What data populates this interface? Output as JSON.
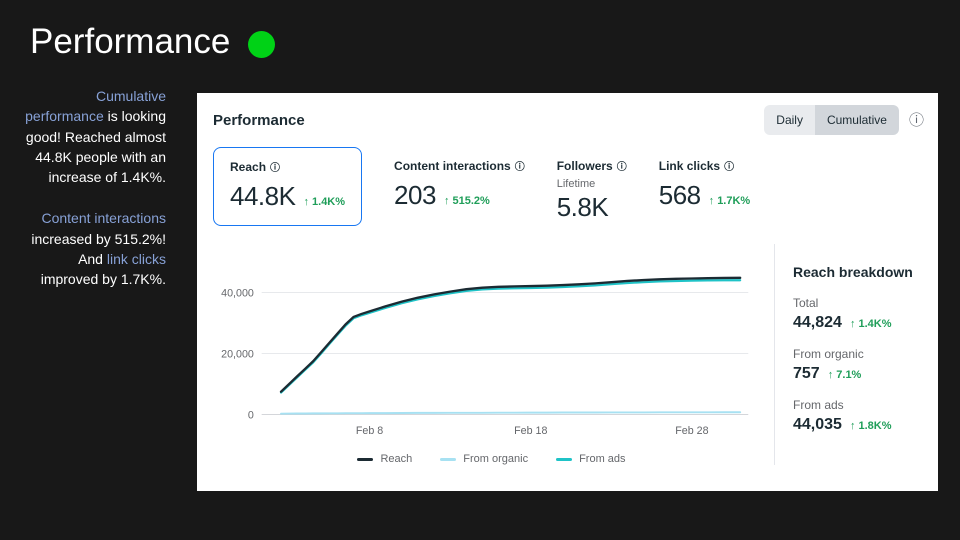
{
  "colors": {
    "bg": "#181818",
    "dot_green": "#00d216",
    "link_blue": "#87a1d6",
    "trend_green": "#1f9e59",
    "card_blue": "#1877f2"
  },
  "icons": {
    "trend_up": "↑",
    "info": "ⓘ"
  },
  "slide": {
    "title": "Performance",
    "note1": {
      "link": "Cumulative performance",
      "text": " is looking good! Reached almost 44.8K people with an increase of 1.4K%."
    },
    "note2": {
      "link1": "Content interactions",
      "text1": " increased by 515.2%!",
      "text2": "And ",
      "link2": "link clicks",
      "text3": " improved by 1.7K%."
    }
  },
  "panel": {
    "title": "Performance",
    "toggle": {
      "daily": "Daily",
      "cumulative": "Cumulative"
    },
    "metrics": [
      {
        "label": "Reach",
        "value": "44.8K",
        "trend": "1.4K%",
        "selected": true
      },
      {
        "label": "Content interactions",
        "value": "203",
        "trend": "515.2%"
      },
      {
        "label": "Followers",
        "sub": "Lifetime",
        "value": "5.8K"
      },
      {
        "label": "Link clicks",
        "value": "568",
        "trend": "1.7K%"
      }
    ],
    "breakdown": {
      "title": "Reach breakdown",
      "rows": [
        {
          "label": "Total",
          "value": "44,824",
          "trend": "1.4K%"
        },
        {
          "label": "From organic",
          "value": "757",
          "trend": "7.1%"
        },
        {
          "label": "From ads",
          "value": "44,035",
          "trend": "1.8K%"
        }
      ]
    }
  },
  "chart_data": {
    "type": "line",
    "x_domain": [
      1.3,
      31.5
    ],
    "ylim": [
      0,
      52000
    ],
    "yticks": [
      0,
      20000,
      40000
    ],
    "x_ticks": [
      {
        "day": 8,
        "label": "Feb 8"
      },
      {
        "day": 18,
        "label": "Feb 18"
      },
      {
        "day": 28,
        "label": "Feb 28"
      }
    ],
    "x": [
      2.5,
      3,
      3.5,
      4,
      4.5,
      5,
      5.5,
      6,
      6.5,
      7,
      7.5,
      8,
      9,
      10,
      11,
      12,
      13,
      14,
      15,
      16,
      17,
      18,
      19,
      20,
      21,
      22,
      23,
      24,
      25,
      26,
      27,
      28,
      29,
      30,
      31
    ],
    "series": [
      {
        "name": "Reach",
        "color": "#1c2b33",
        "width": 2.4,
        "values": [
          7500,
          10000,
          12500,
          15000,
          17500,
          20500,
          23500,
          26500,
          29500,
          32000,
          33000,
          33800,
          35500,
          37000,
          38300,
          39400,
          40300,
          41100,
          41600,
          41900,
          42000,
          42100,
          42250,
          42450,
          42700,
          43000,
          43400,
          43800,
          44100,
          44350,
          44500,
          44600,
          44700,
          44780,
          44824
        ]
      },
      {
        "name": "From organic",
        "color": "#a7e1f2",
        "width": 2,
        "values": [
          300,
          320,
          340,
          360,
          375,
          390,
          405,
          420,
          435,
          450,
          460,
          470,
          490,
          510,
          528,
          545,
          560,
          575,
          590,
          605,
          618,
          630,
          642,
          654,
          665,
          676,
          687,
          698,
          708,
          718,
          727,
          735,
          743,
          750,
          757
        ]
      },
      {
        "name": "From ads",
        "color": "#1fc3c7",
        "width": 2.2,
        "values": [
          7200,
          9680,
          12160,
          14640,
          17125,
          20110,
          23095,
          26080,
          29065,
          31550,
          32540,
          33330,
          35010,
          36490,
          37772,
          38855,
          39740,
          40525,
          41010,
          41295,
          41382,
          41470,
          41608,
          41796,
          42035,
          42324,
          42713,
          43102,
          43392,
          43632,
          43773,
          43865,
          43957,
          44030,
          44035
        ]
      }
    ]
  }
}
